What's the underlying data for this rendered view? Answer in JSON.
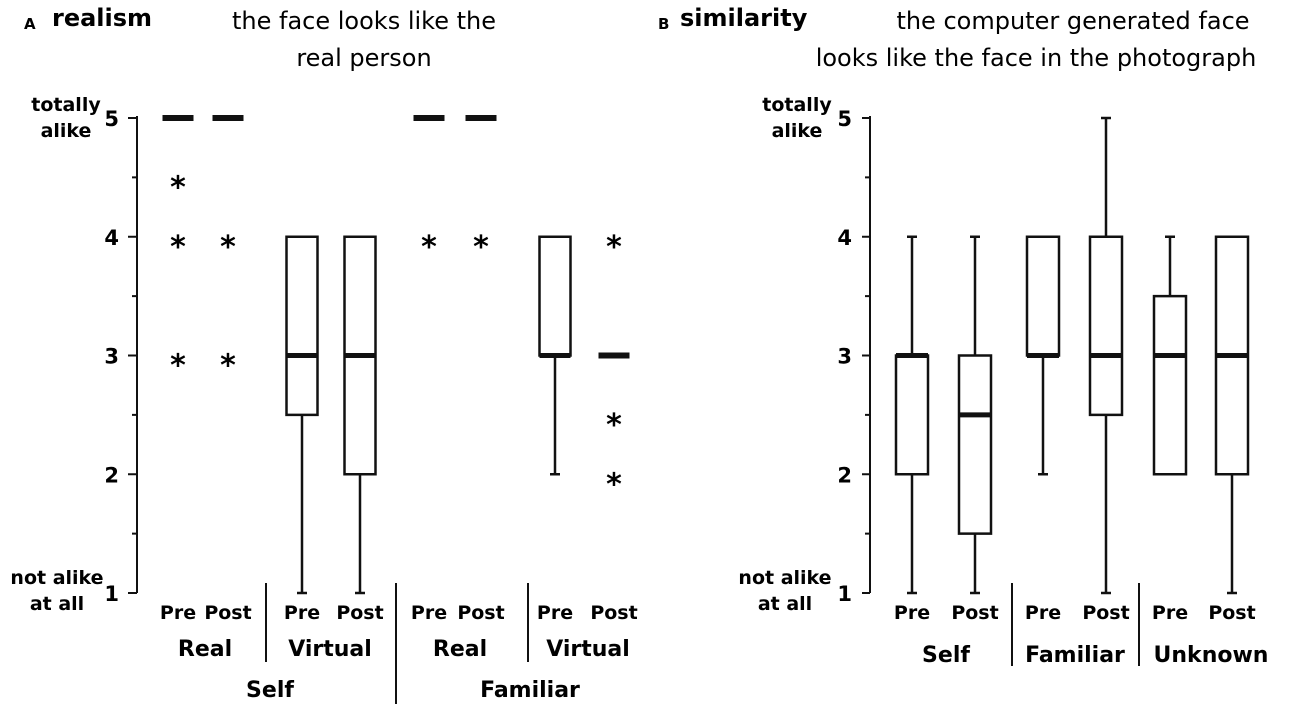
{
  "chart_data": [
    {
      "type": "box",
      "panel": "A",
      "title": "realism",
      "subtitle": [
        "the face looks like the",
        "real person"
      ],
      "y_top_label": [
        "totally",
        "alike"
      ],
      "y_bottom_label": [
        "not alike",
        "at all"
      ],
      "ylim": [
        1,
        5
      ],
      "yticks": [
        "1",
        "2",
        "3",
        "4",
        "5"
      ],
      "groups": [
        "Self",
        "Familiar"
      ],
      "subgroups": [
        "Real",
        "Virtual",
        "Real",
        "Virtual"
      ],
      "boxes": [
        {
          "group": "Self",
          "subgroup": "Real",
          "label": "Pre",
          "collapsed": true,
          "median": 5,
          "outliers": [
            4.5,
            4,
            3
          ]
        },
        {
          "group": "Self",
          "subgroup": "Real",
          "label": "Post",
          "collapsed": true,
          "median": 5,
          "outliers": [
            4,
            3
          ]
        },
        {
          "group": "Self",
          "subgroup": "Virtual",
          "label": "Pre",
          "q1": 2.5,
          "median": 3,
          "q3": 4,
          "whisker_low": 1,
          "whisker_high": 4,
          "outliers": []
        },
        {
          "group": "Self",
          "subgroup": "Virtual",
          "label": "Post",
          "q1": 2,
          "median": 3,
          "q3": 4,
          "whisker_low": 1,
          "whisker_high": 4,
          "outliers": []
        },
        {
          "group": "Familiar",
          "subgroup": "Real",
          "label": "Pre",
          "collapsed": true,
          "median": 5,
          "outliers": [
            4
          ]
        },
        {
          "group": "Familiar",
          "subgroup": "Real",
          "label": "Post",
          "collapsed": true,
          "median": 5,
          "outliers": [
            4
          ]
        },
        {
          "group": "Familiar",
          "subgroup": "Virtual",
          "label": "Pre",
          "q1": 3,
          "median": 3,
          "q3": 4,
          "whisker_low": 2,
          "whisker_high": 4,
          "outliers": []
        },
        {
          "group": "Familiar",
          "subgroup": "Virtual",
          "label": "Post",
          "collapsed": true,
          "median": 3,
          "outliers": [
            4,
            2.5,
            2
          ]
        }
      ]
    },
    {
      "type": "box",
      "panel": "B",
      "title": "similarity",
      "subtitle": [
        "the computer generated face",
        "looks like the face in the photograph"
      ],
      "y_top_label": [
        "totally",
        "alike"
      ],
      "y_bottom_label": [
        "not alike",
        "at all"
      ],
      "ylim": [
        1,
        5
      ],
      "yticks": [
        "1",
        "2",
        "3",
        "4",
        "5"
      ],
      "groups": [
        "Self",
        "Familiar",
        "Unknown"
      ],
      "boxes": [
        {
          "group": "Self",
          "label": "Pre",
          "q1": 2,
          "median": 3,
          "q3": 3,
          "whisker_low": 1,
          "whisker_high": 4
        },
        {
          "group": "Self",
          "label": "Post",
          "q1": 1.5,
          "median": 2.5,
          "q3": 3,
          "whisker_low": 1,
          "whisker_high": 4
        },
        {
          "group": "Familiar",
          "label": "Pre",
          "q1": 3,
          "median": 3,
          "q3": 4,
          "whisker_low": 2,
          "whisker_high": 4
        },
        {
          "group": "Familiar",
          "label": "Post",
          "q1": 2.5,
          "median": 3,
          "q3": 4,
          "whisker_low": 1,
          "whisker_high": 5
        },
        {
          "group": "Unknown",
          "label": "Pre",
          "q1": 2,
          "median": 3,
          "q3": 3.5,
          "whisker_low": 2,
          "whisker_high": 4
        },
        {
          "group": "Unknown",
          "label": "Post",
          "q1": 2,
          "median": 3,
          "q3": 4,
          "whisker_low": 1,
          "whisker_high": 4
        }
      ]
    }
  ]
}
